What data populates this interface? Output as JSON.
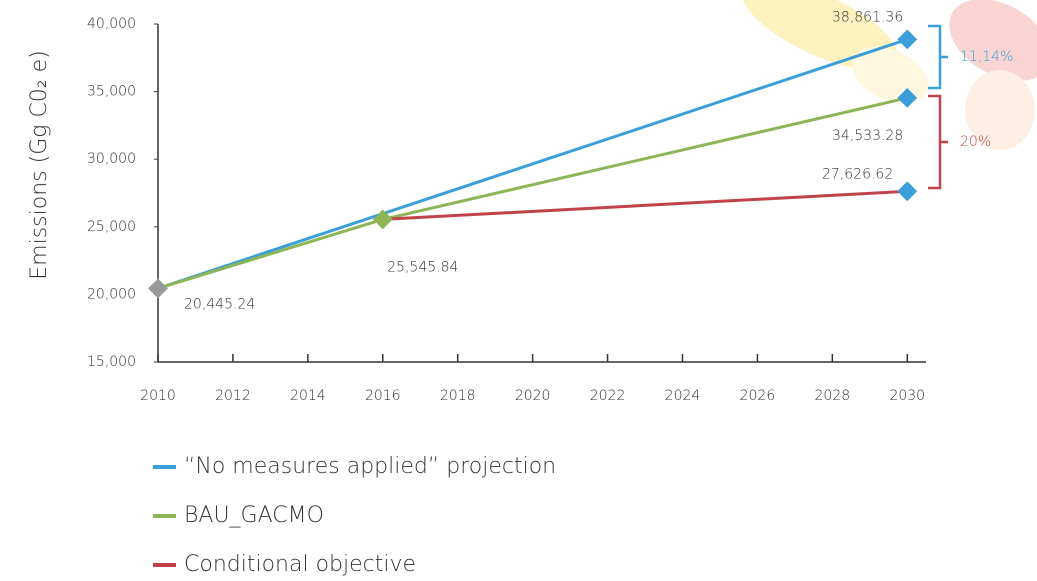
{
  "chart_data": {
    "type": "line",
    "y_label": "Emissions (Gg C0₂ e)",
    "xlim": [
      2010,
      2030.5
    ],
    "ylim": [
      15000,
      40000
    ],
    "xticks": [
      2010,
      2012,
      2014,
      2016,
      2018,
      2020,
      2022,
      2024,
      2026,
      2028,
      2030
    ],
    "yticks": [
      {
        "value": 15000,
        "label": "15,000"
      },
      {
        "value": 20000,
        "label": "20,000"
      },
      {
        "value": 25000,
        "label": "25,000"
      },
      {
        "value": 30000,
        "label": "30,000"
      },
      {
        "value": 35000,
        "label": "35,000"
      },
      {
        "value": 40000,
        "label": "40,000"
      }
    ],
    "series": [
      {
        "name": "“No measures applied” projection",
        "color": "#3a9fd8",
        "x": [
          2010,
          2030
        ],
        "values": [
          20445.24,
          38861.36
        ],
        "value_labels": [
          null,
          "38,861.36"
        ],
        "marker_colors": [
          null,
          "#3a9fd8"
        ]
      },
      {
        "name": "BAU_GACMO",
        "color": "#8db556",
        "x": [
          2010,
          2016,
          2030
        ],
        "values": [
          20445.24,
          25545.84,
          34533.28
        ],
        "value_labels": [
          "20,445.24",
          "25,545.84",
          "34,533.28"
        ],
        "marker_colors": [
          "#999999",
          "#8db556",
          "#3a9fd8"
        ]
      },
      {
        "name": "Conditional objective",
        "color": "#c0434a",
        "x": [
          2016,
          2030
        ],
        "values": [
          25545.84,
          27626.62
        ],
        "value_labels": [
          null,
          "27,626.62"
        ],
        "marker_colors": [
          null,
          "#3a9fd8"
        ]
      }
    ],
    "annotations": [
      {
        "text": "11,14%",
        "color": "#3a9fd8"
      },
      {
        "text": "20%",
        "color": "#c0434a"
      }
    ]
  }
}
